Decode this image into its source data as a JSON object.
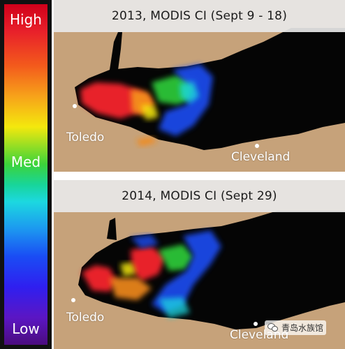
{
  "legend": {
    "high": "High",
    "med": "Med",
    "low": "Low"
  },
  "panels": [
    {
      "title": "2013, MODIS CI  (Sept 9 - 18)",
      "cities": [
        "Toledo",
        "Cleveland"
      ]
    },
    {
      "title": "2014, MODIS CI  (Sept 29)",
      "cities": [
        "Toledo",
        "Cleveland"
      ]
    }
  ],
  "watermark": {
    "text": "青岛水族馆",
    "icon": "wechat-icon"
  },
  "colors": {
    "land": "#c6a27a",
    "water": "#050505",
    "bloom_high": "#e8202a",
    "bloom_mid": "#2fcf3a",
    "bloom_low": "#1a4df4"
  }
}
